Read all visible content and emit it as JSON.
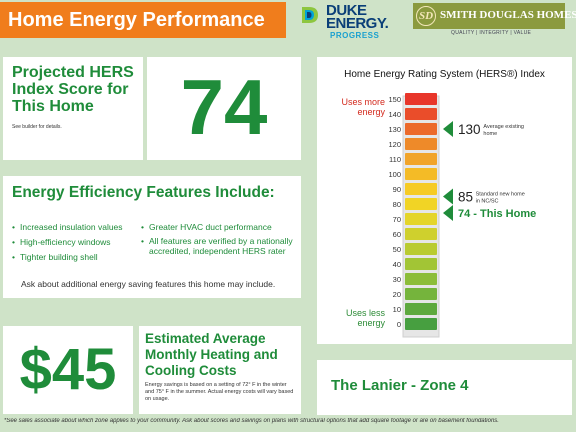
{
  "header": {
    "title": "Home Energy Performance",
    "duke_line1": "DUKE",
    "duke_line2": "ENERGY.",
    "duke_line3": "PROGRESS",
    "builder_emblem": "SD",
    "builder_name": "SMITH DOUGLAS HOMES",
    "builder_tagline": "QUALITY | INTEGRITY | VALUE"
  },
  "hers": {
    "heading": "Projected HERS Index Score for This Home",
    "note": "See builder for details.",
    "score": "74"
  },
  "features": {
    "heading": "Energy Efficiency Features Include:",
    "col1": [
      "Increased insulation values",
      "High-efficiency windows",
      "Tighter building shell"
    ],
    "col2": [
      "Greater HVAC duct performance",
      "All features are verified by a nationally accredited, independent HERS rater"
    ],
    "ask": "Ask about additional energy saving features this home may include."
  },
  "savings": {
    "amount": "$45",
    "heading": "Estimated Average Monthly Heating and Cooling Costs",
    "note": "Energy savings is based on a setting of 72° F in the winter and 75° F in the summer. Actual energy costs will vary based on usage."
  },
  "index_chart": {
    "title": "Home Energy Rating System (HERS®) Index",
    "uses_more": "Uses more energy",
    "uses_less": "Uses less energy"
  },
  "chart_data": {
    "type": "bar",
    "title": "Home Energy Rating System (HERS®) Index",
    "scale_ticks": [
      150,
      140,
      130,
      120,
      110,
      100,
      90,
      80,
      70,
      60,
      50,
      40,
      30,
      20,
      10,
      0
    ],
    "bar_colors": [
      "#e8362a",
      "#ea4d2a",
      "#ec6a2a",
      "#ee8a29",
      "#f1a429",
      "#f4bb26",
      "#f6cb24",
      "#f1d425",
      "#e4d52a",
      "#cfd02d",
      "#b9cb31",
      "#a2c535",
      "#8cbd39",
      "#75b43c",
      "#5ea93e",
      "#479f40"
    ],
    "markers": [
      {
        "value": 130,
        "number": "130",
        "label": "Average existing home"
      },
      {
        "value": 85,
        "number": "85",
        "label": "Standard new home in NC/SC"
      },
      {
        "value": 74,
        "number": "",
        "label": "74 - This Home"
      }
    ],
    "accent_color": "#1f8c3a"
  },
  "plan": {
    "name": "The Lanier - Zone 4"
  },
  "footnote": "*See sales associate about which zone applies to your community.  Ask about scores and savings on plans with structural options that add square footage or are on basement foundations."
}
